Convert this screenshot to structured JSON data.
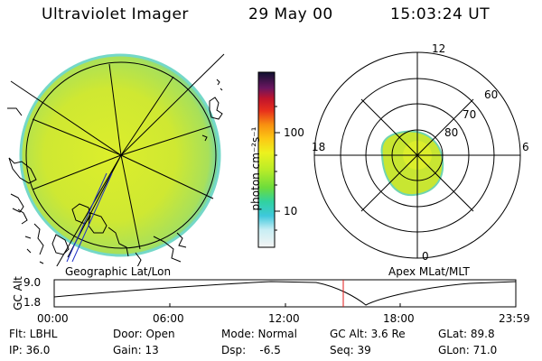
{
  "header": {
    "title": "Ultraviolet Imager",
    "date": "29 May 00",
    "time": "15:03:24 UT"
  },
  "colorbar": {
    "label": "photon cm⁻²s⁻¹",
    "ticks": [
      "100",
      "10"
    ]
  },
  "panels": {
    "left_label": "Geographic Lat/Lon",
    "right_label": "Apex MLat/MLT"
  },
  "polar": {
    "mlt_labels": {
      "top": "12",
      "left": "18",
      "right": "6",
      "bottom": "0"
    },
    "lat_labels": [
      "60",
      "70",
      "80"
    ]
  },
  "altitude_plot": {
    "ylabel": "GC Alt",
    "ymax": "9.0",
    "ymin": "1.8",
    "time_ticks": [
      "00:00",
      "06:00",
      "12:00",
      "18:00",
      "23:59"
    ],
    "marker_time": "15:03"
  },
  "info_rows": [
    [
      "Flt: LBHL",
      "Door: Open",
      "Mode: Normal",
      "GC Alt: 3.6 Re",
      "GLat: 89.8"
    ],
    [
      "IP: 36.0",
      "Gain: 13",
      "Dsp:    -6.5",
      "Seq: 39",
      "GLon: 71.0"
    ]
  ]
}
